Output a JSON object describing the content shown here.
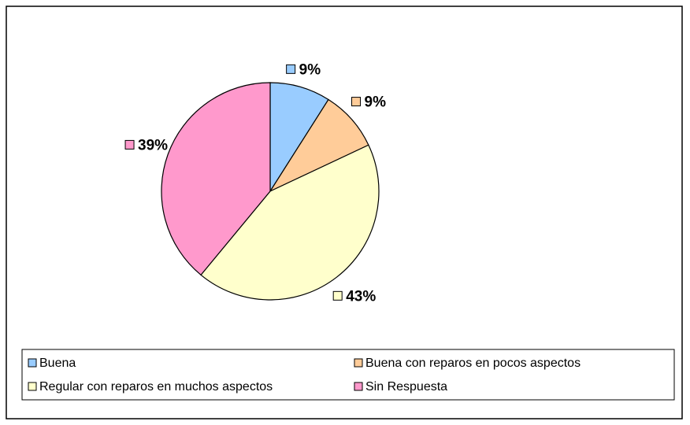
{
  "chart_data": {
    "type": "pie",
    "categories": [
      "Buena",
      "Buena con reparos en pocos aspectos",
      "Regular con reparos en muchos aspectos",
      "Sin Respuesta"
    ],
    "values": [
      9,
      9,
      43,
      39
    ],
    "value_labels": [
      "9%",
      "9%",
      "43%",
      "39%"
    ],
    "colors": [
      "#99ccff",
      "#ffcc99",
      "#ffffcc",
      "#ff99cc"
    ],
    "legend": "bottom"
  }
}
